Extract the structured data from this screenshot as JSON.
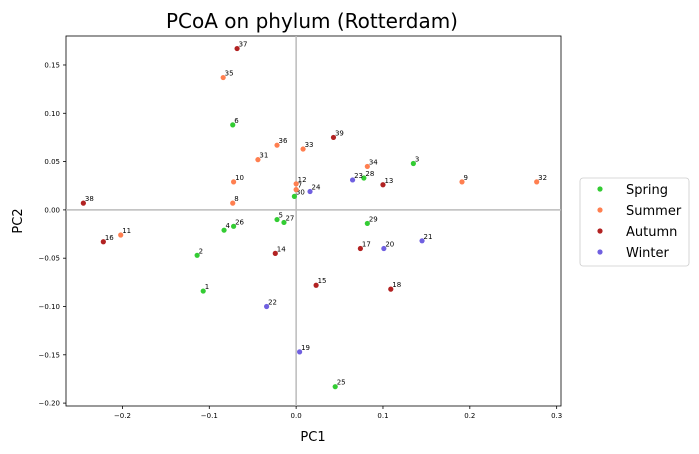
{
  "chart_data": {
    "type": "scatter",
    "title": "PCoA on phylum (Rotterdam)",
    "xlabel": "PC1",
    "ylabel": "PC2",
    "xlim": [
      -0.265,
      0.305
    ],
    "ylim": [
      -0.203,
      0.18
    ],
    "xticks": [
      -0.2,
      -0.1,
      0.0,
      0.1,
      0.2,
      0.3
    ],
    "xtick_labels": [
      "−0.2",
      "−0.1",
      "0.0",
      "0.1",
      "0.2",
      "0.3"
    ],
    "yticks": [
      -0.2,
      -0.15,
      -0.1,
      -0.05,
      0.0,
      0.05,
      0.1,
      0.15
    ],
    "ytick_labels": [
      "−0.20",
      "−0.15",
      "−0.10",
      "−0.05",
      "0.00",
      "0.05",
      "0.10",
      "0.15"
    ],
    "reference_lines": {
      "x": 0,
      "y": 0,
      "color": "#bbbbbb"
    },
    "grid": false,
    "legend_position": "outside-right",
    "series": [
      {
        "name": "Spring",
        "color": "#33cc33",
        "points": [
          {
            "label": "1",
            "x": -0.107,
            "y": -0.084
          },
          {
            "label": "2",
            "x": -0.114,
            "y": -0.047
          },
          {
            "label": "3",
            "x": 0.135,
            "y": 0.048
          },
          {
            "label": "4",
            "x": -0.083,
            "y": -0.021
          },
          {
            "label": "5",
            "x": -0.022,
            "y": -0.01
          },
          {
            "label": "6",
            "x": -0.073,
            "y": 0.088
          },
          {
            "label": "25",
            "x": 0.045,
            "y": -0.183
          },
          {
            "label": "26",
            "x": -0.072,
            "y": -0.017
          },
          {
            "label": "27",
            "x": -0.014,
            "y": -0.013
          },
          {
            "label": "28",
            "x": 0.078,
            "y": 0.033
          },
          {
            "label": "29",
            "x": 0.082,
            "y": -0.014
          },
          {
            "label": "30",
            "x": -0.002,
            "y": 0.014
          }
        ]
      },
      {
        "name": "Summer",
        "color": "#ff7f50",
        "points": [
          {
            "label": "7",
            "x": 0.0,
            "y": 0.021
          },
          {
            "label": "8",
            "x": -0.073,
            "y": 0.007
          },
          {
            "label": "9",
            "x": 0.191,
            "y": 0.029
          },
          {
            "label": "10",
            "x": -0.072,
            "y": 0.029
          },
          {
            "label": "11",
            "x": -0.202,
            "y": -0.026
          },
          {
            "label": "12",
            "x": 0.0,
            "y": 0.027
          },
          {
            "label": "31",
            "x": -0.044,
            "y": 0.052
          },
          {
            "label": "32",
            "x": 0.277,
            "y": 0.029
          },
          {
            "label": "33",
            "x": 0.008,
            "y": 0.063
          },
          {
            "label": "34",
            "x": 0.082,
            "y": 0.045
          },
          {
            "label": "35",
            "x": -0.084,
            "y": 0.137
          },
          {
            "label": "36",
            "x": -0.022,
            "y": 0.067
          }
        ]
      },
      {
        "name": "Autumn",
        "color": "#b22222",
        "points": [
          {
            "label": "13",
            "x": 0.1,
            "y": 0.026
          },
          {
            "label": "14",
            "x": -0.024,
            "y": -0.045
          },
          {
            "label": "15",
            "x": 0.023,
            "y": -0.078
          },
          {
            "label": "16",
            "x": -0.222,
            "y": -0.033
          },
          {
            "label": "17",
            "x": 0.074,
            "y": -0.04
          },
          {
            "label": "18",
            "x": 0.109,
            "y": -0.082
          },
          {
            "label": "37",
            "x": -0.068,
            "y": 0.167
          },
          {
            "label": "38",
            "x": -0.245,
            "y": 0.007
          },
          {
            "label": "39",
            "x": 0.043,
            "y": 0.075
          }
        ]
      },
      {
        "name": "Winter",
        "color": "#7060e0",
        "points": [
          {
            "label": "19",
            "x": 0.004,
            "y": -0.147
          },
          {
            "label": "20",
            "x": 0.101,
            "y": -0.04
          },
          {
            "label": "21",
            "x": 0.145,
            "y": -0.032
          },
          {
            "label": "22",
            "x": -0.034,
            "y": -0.1
          },
          {
            "label": "23",
            "x": 0.065,
            "y": 0.031
          },
          {
            "label": "24",
            "x": 0.016,
            "y": 0.019
          }
        ]
      }
    ]
  }
}
